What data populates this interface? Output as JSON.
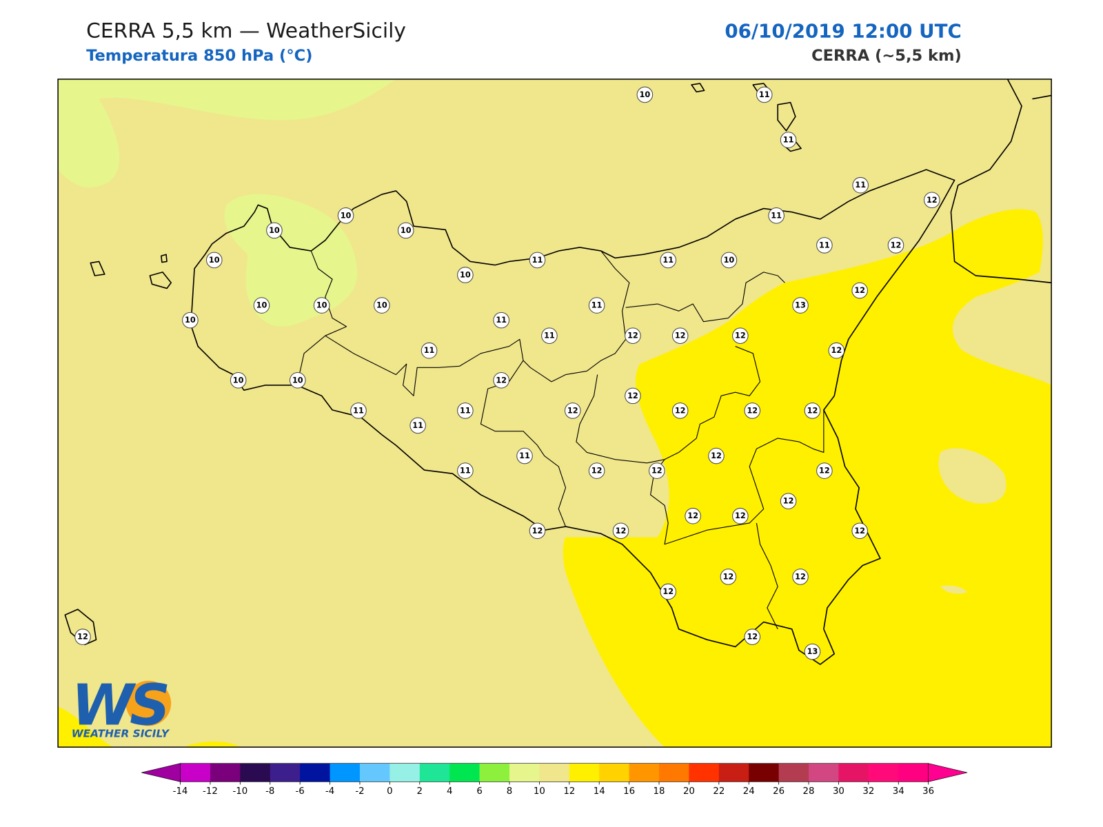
{
  "header": {
    "title": "CERRA 5,5 km — WeatherSicily",
    "subtitle": "Temperatura 850 hPa (°C)",
    "datetime": "06/10/2019 12:00 UTC",
    "model": "CERRA (~5,5 km)"
  },
  "stations": [
    10,
    11,
    11,
    11,
    12,
    10,
    10,
    10,
    11,
    11,
    12,
    10,
    11,
    11,
    10,
    10,
    12,
    10,
    10,
    10,
    11,
    13,
    10,
    11,
    11,
    12,
    12,
    12,
    11,
    12,
    10,
    10,
    12,
    12,
    11,
    11,
    12,
    12,
    12,
    12,
    11,
    12,
    11,
    11,
    12,
    12,
    12,
    12,
    12,
    12,
    12,
    12,
    12,
    12,
    12,
    12,
    12,
    13,
    12
  ],
  "colorbar": {
    "ticks": [
      -14,
      -12,
      -10,
      -8,
      -6,
      -4,
      -2,
      0,
      2,
      4,
      6,
      8,
      10,
      12,
      14,
      16,
      18,
      20,
      22,
      24,
      26,
      28,
      30,
      32,
      34,
      36
    ],
    "colors": [
      "#c800c8",
      "#7b007b",
      "#2a0a50",
      "#3c1e8c",
      "#0014a0",
      "#0096ff",
      "#64c8ff",
      "#96f0e6",
      "#1ee696",
      "#00e650",
      "#8cf03c",
      "#e6f58c",
      "#f0e68c",
      "#fff000",
      "#ffd200",
      "#ff9600",
      "#ff7800",
      "#ff3200",
      "#c81e14",
      "#780000",
      "#b43c50",
      "#d24682",
      "#e61464",
      "#ff0a78",
      "#ff0080"
    ],
    "under_color": "#a000a0",
    "over_color": "#ff0090"
  },
  "logo": {
    "mark": "WS",
    "text": "WEATHER SICILY"
  }
}
